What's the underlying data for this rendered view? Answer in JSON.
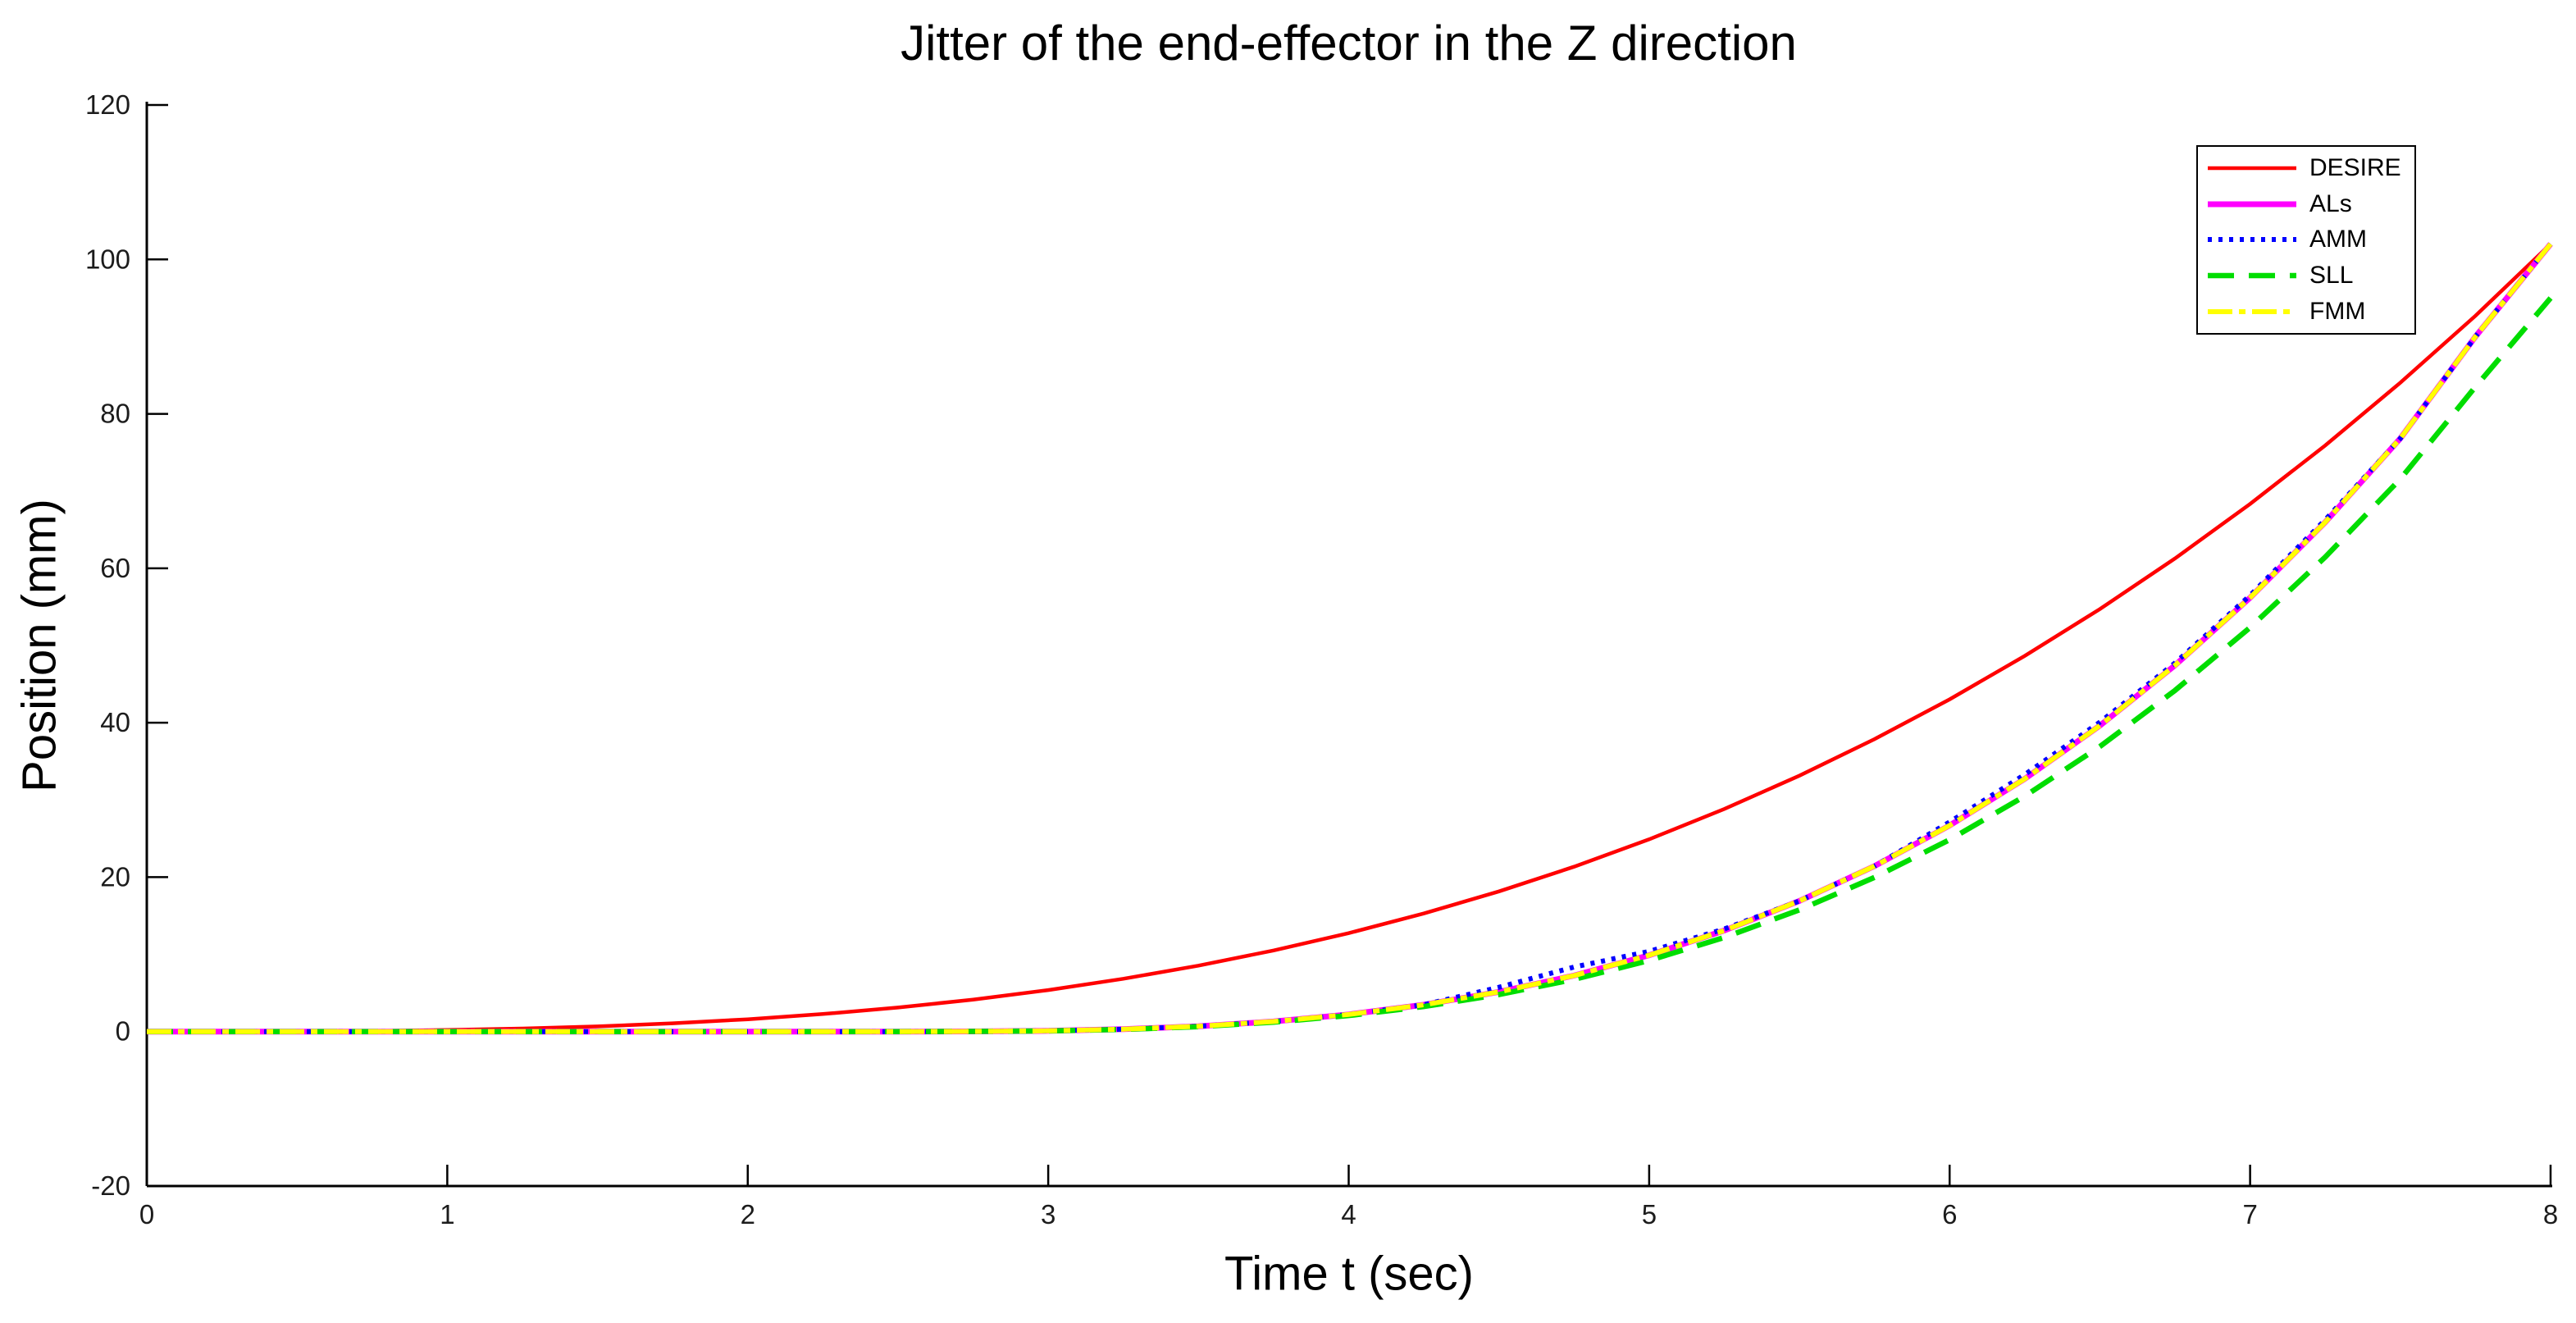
{
  "title": "Jitter of the end-effector in the Z direction",
  "chart_data": {
    "type": "line",
    "title": "Jitter of the end-effector in the Z direction",
    "xlabel": "Time t (sec)",
    "ylabel": "Position (mm)",
    "xlim": [
      0,
      8
    ],
    "ylim": [
      -20,
      120
    ],
    "x_ticks": [
      0,
      1,
      2,
      3,
      4,
      5,
      6,
      7,
      8
    ],
    "y_ticks": [
      -20,
      0,
      20,
      40,
      60,
      80,
      100,
      120
    ],
    "grid": false,
    "legend_position": "upper-right-inside",
    "axis_color": "#000000",
    "background_color": "#ffffff",
    "x": [
      0,
      0.25,
      0.5,
      0.75,
      1,
      1.25,
      1.5,
      1.75,
      2,
      2.25,
      2.5,
      2.75,
      3,
      3.25,
      3.5,
      3.75,
      4,
      4.25,
      4.5,
      4.75,
      5,
      5.25,
      5.5,
      5.75,
      6,
      6.25,
      6.5,
      6.75,
      7,
      7.25,
      7.5,
      7.75,
      8
    ],
    "series": [
      {
        "name": "DESIRE",
        "color": "#ff0000",
        "style": "solid",
        "width": 4.5,
        "values": [
          0,
          0,
          0.02,
          0.08,
          0.2,
          0.39,
          0.67,
          1.07,
          1.59,
          2.27,
          3.11,
          4.14,
          5.38,
          6.84,
          8.54,
          10.51,
          12.75,
          15.3,
          18.16,
          21.35,
          24.9,
          28.83,
          33.14,
          37.88,
          43.03,
          48.65,
          54.72,
          61.27,
          68.33,
          75.91,
          84.03,
          92.7,
          102
        ]
      },
      {
        "name": "ALs",
        "color": "#ff00ff",
        "style": "solid",
        "width": 7,
        "values": [
          0,
          0,
          0,
          0,
          0,
          0,
          0,
          0,
          0,
          0,
          0,
          0.02,
          0.1,
          0.31,
          0.69,
          1.31,
          2.22,
          3.48,
          5.14,
          7.26,
          9.89,
          13.09,
          16.92,
          21.44,
          26.69,
          32.73,
          39.62,
          47.43,
          56.19,
          65.97,
          76.82,
          90,
          102
        ]
      },
      {
        "name": "AMM",
        "color": "#0000ff",
        "style": "dotted",
        "width": 6,
        "values": [
          0,
          0,
          0,
          0,
          0,
          0,
          0,
          0,
          0,
          0,
          0,
          0.02,
          0.1,
          0.31,
          0.69,
          1.31,
          2.22,
          3.48,
          5.74,
          8.36,
          10.39,
          13.29,
          16.92,
          21.44,
          27.14,
          33.28,
          40.07,
          47.73,
          56.49,
          66.27,
          76.82,
          90,
          102
        ]
      },
      {
        "name": "SLL",
        "color": "#00dd00",
        "style": "dashed",
        "width": 6.5,
        "values": [
          0,
          0,
          0,
          0,
          0,
          0,
          0,
          0,
          0,
          0,
          0,
          0.02,
          0.09,
          0.28,
          0.64,
          1.22,
          2.07,
          3.24,
          4.79,
          6.76,
          9.21,
          12.2,
          15.77,
          19.97,
          24.86,
          30.49,
          36.91,
          44.18,
          52.34,
          61.45,
          71.56,
          83.5,
          95
        ]
      },
      {
        "name": "FMM",
        "color": "#ffff00",
        "style": "dashdot",
        "width": 6,
        "values": [
          0,
          0,
          0,
          0,
          0,
          0,
          0,
          0,
          0,
          0,
          0,
          0.02,
          0.1,
          0.31,
          0.69,
          1.31,
          2.22,
          3.48,
          5.14,
          7.26,
          9.89,
          13.09,
          16.92,
          21.44,
          26.69,
          32.73,
          39.62,
          47.43,
          56.19,
          65.97,
          76.82,
          90,
          102
        ]
      }
    ]
  }
}
